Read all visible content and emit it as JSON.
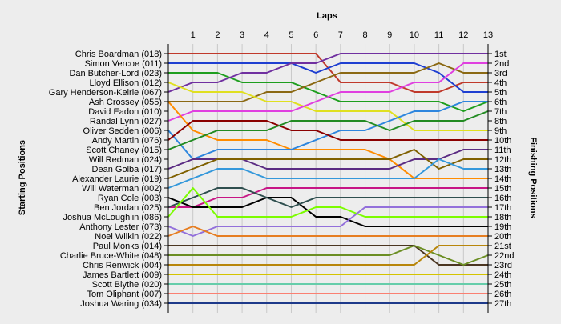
{
  "chart_data": {
    "type": "line",
    "title": "Laps",
    "xlabel": "Laps",
    "ylabel_left": "Starting Positions",
    "ylabel_right": "Finishing Positions",
    "x": [
      0,
      1,
      2,
      3,
      4,
      5,
      6,
      7,
      8,
      9,
      10,
      11,
      12,
      13
    ],
    "x_tick_labels": [
      "1",
      "2",
      "3",
      "4",
      "5",
      "6",
      "7",
      "8",
      "9",
      "10",
      "11",
      "12",
      "13"
    ],
    "xlim": [
      0,
      13
    ],
    "ylim": [
      1,
      27
    ],
    "y_inverted": true,
    "grid": true,
    "starting_labels": [
      "Chris Boardman (018)",
      "Simon Vercoe (011)",
      "Dan Butcher-Lord (023)",
      "Lloyd Ellison (012)",
      "Gary Henderson-Keirle (067)",
      "Ash Crossey (055)",
      "David Eadon (010)",
      "Randal Lynn (027)",
      "Oliver Sedden (006)",
      "Andy Martin (076)",
      "Scott Chaney (015)",
      "Will Redman (024)",
      "Dean Golba (017)",
      "Alexander Laurie (019)",
      "Will Waterman (002)",
      "Ryan Cole (003)",
      "Ben Jordan (025)",
      "Joshua McLoughlin (086)",
      "Anthony Lester (073)",
      "Noel Wilkin (022)",
      "Paul Monks (014)",
      "Charlie Bruce-White (048)",
      "Chris Renwick (004)",
      "James Bartlett (009)",
      "Scott Blythe (020)",
      "Tom Oliphant (007)",
      "Joshua Waring (034)"
    ],
    "finishing_labels": [
      "1st",
      "2nd",
      "3rd",
      "4th",
      "5th",
      "6th",
      "7th",
      "8th",
      "9th",
      "10th",
      "11th",
      "12th",
      "13th",
      "14th",
      "15th",
      "16th",
      "17th",
      "18th",
      "19th",
      "20th",
      "21st",
      "22nd",
      "23rd",
      "24th",
      "25th",
      "26th",
      "27th"
    ],
    "series": [
      {
        "color": "#c0392b",
        "values": [
          1,
          1,
          1,
          1,
          1,
          1,
          1,
          4,
          4,
          4,
          5,
          5,
          4,
          4
        ]
      },
      {
        "color": "#1f3fd1",
        "values": [
          2,
          2,
          2,
          2,
          2,
          2,
          3,
          2,
          2,
          2,
          2,
          3,
          5,
          5
        ]
      },
      {
        "color": "#1e9e1e",
        "values": [
          3,
          3,
          3,
          4,
          4,
          4,
          5,
          6,
          6,
          6,
          6,
          6,
          7,
          6
        ]
      },
      {
        "color": "#7030a0",
        "values": [
          5,
          4,
          4,
          3,
          3,
          2,
          2,
          1,
          1,
          1,
          1,
          1,
          1,
          1
        ]
      },
      {
        "color": "#8b6914",
        "values": [
          6,
          6,
          6,
          6,
          5,
          5,
          4,
          3,
          3,
          3,
          3,
          2,
          3,
          3
        ]
      },
      {
        "color": "#e0e020",
        "values": [
          4,
          5,
          5,
          5,
          6,
          6,
          7,
          7,
          7,
          7,
          9,
          9,
          9,
          9
        ]
      },
      {
        "color": "#e040e0",
        "values": [
          8,
          7,
          7,
          7,
          7,
          7,
          6,
          5,
          5,
          5,
          4,
          4,
          2,
          2
        ]
      },
      {
        "color": "#ff8c00",
        "values": [
          6,
          9,
          10,
          10,
          10,
          11,
          11,
          11,
          11,
          12,
          14,
          14,
          14,
          14
        ]
      },
      {
        "color": "#2e86de",
        "values": [
          9,
          12,
          11,
          11,
          11,
          11,
          10,
          9,
          9,
          8,
          7,
          7,
          6,
          6
        ]
      },
      {
        "color": "#8b0000",
        "values": [
          10,
          8,
          8,
          8,
          8,
          9,
          9,
          10,
          10,
          10,
          10,
          10,
          10,
          10
        ]
      },
      {
        "color": "#228b22",
        "values": [
          11,
          10,
          9,
          9,
          9,
          8,
          8,
          8,
          8,
          9,
          8,
          8,
          8,
          7
        ]
      },
      {
        "color": "#5b2c83",
        "values": [
          13,
          12,
          12,
          12,
          13,
          13,
          13,
          13,
          13,
          13,
          12,
          12,
          11,
          11
        ]
      },
      {
        "color": "#7f6000",
        "values": [
          14,
          13,
          12,
          12,
          12,
          12,
          12,
          12,
          12,
          12,
          11,
          13,
          12,
          12
        ]
      },
      {
        "color": "#3498db",
        "values": [
          15,
          14,
          13,
          13,
          14,
          14,
          14,
          14,
          14,
          14,
          14,
          12,
          13,
          13
        ]
      },
      {
        "color": "#c71585",
        "values": [
          17,
          17,
          16,
          16,
          15,
          15,
          15,
          15,
          15,
          15,
          15,
          15,
          15,
          15
        ]
      },
      {
        "color": "#000000",
        "values": [
          16,
          17,
          17,
          17,
          16,
          16,
          18,
          18,
          19,
          19,
          19,
          19,
          19,
          19
        ]
      },
      {
        "color": "#2f4f4f",
        "values": [
          17,
          16,
          15,
          15,
          16,
          17,
          16,
          16,
          16,
          16,
          16,
          16,
          16,
          16
        ]
      },
      {
        "color": "#7cfc00",
        "values": [
          18,
          15,
          18,
          18,
          18,
          18,
          17,
          17,
          18,
          18,
          18,
          18,
          18,
          18
        ]
      },
      {
        "color": "#9370db",
        "values": [
          19,
          20,
          19,
          19,
          19,
          19,
          19,
          19,
          17,
          17,
          17,
          17,
          17,
          17
        ]
      },
      {
        "color": "#e67e22",
        "values": [
          20,
          19,
          20,
          20,
          20,
          20,
          20,
          20,
          20,
          20,
          20,
          20,
          20,
          20
        ]
      },
      {
        "color": "#4b3621",
        "values": [
          21,
          21,
          21,
          21,
          21,
          21,
          21,
          21,
          21,
          21,
          21,
          23,
          23,
          23
        ]
      },
      {
        "color": "#6b8e23",
        "values": [
          22,
          22,
          22,
          22,
          22,
          22,
          22,
          22,
          22,
          22,
          21,
          22,
          23,
          22
        ]
      },
      {
        "color": "#b8860b",
        "values": [
          23,
          23,
          23,
          23,
          23,
          23,
          23,
          23,
          23,
          23,
          23,
          21,
          21,
          21
        ]
      },
      {
        "color": "#d4c400",
        "values": [
          24,
          24,
          24,
          24,
          24,
          24,
          24,
          24,
          24,
          24,
          24,
          24,
          24,
          24
        ]
      },
      {
        "color": "#66cdaa",
        "values": [
          25,
          25,
          25,
          25,
          25,
          25,
          25,
          25,
          25,
          25,
          25,
          25,
          25,
          25
        ]
      },
      {
        "color": "#fa8072",
        "values": [
          26,
          26,
          26,
          26,
          26,
          26,
          26,
          26,
          26,
          26,
          26,
          26,
          26,
          26
        ]
      },
      {
        "color": "#1e3a8a",
        "values": [
          27,
          27,
          27,
          27,
          27,
          27,
          27,
          27,
          27,
          27,
          27,
          27,
          27,
          27
        ]
      }
    ]
  }
}
